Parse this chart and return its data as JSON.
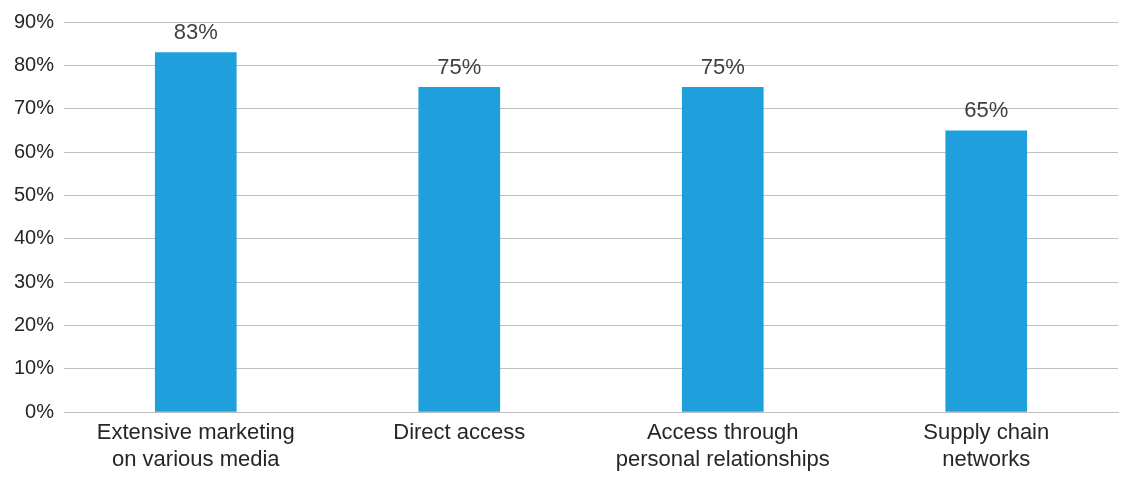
{
  "chart_data": {
    "type": "bar",
    "categories": [
      "Extensive marketing on various media",
      "Direct access",
      "Access through personal relationships",
      "Supply chain networks"
    ],
    "values": [
      83,
      75,
      75,
      65
    ],
    "color": "#1f9fdb",
    "value_labels": [
      "83%",
      "75%",
      "75%",
      "65%"
    ],
    "ylim": [
      0,
      90
    ],
    "yticks": [
      {
        "value": 0,
        "label": "0%"
      },
      {
        "value": 10,
        "label": "10%"
      },
      {
        "value": 20,
        "label": "20%"
      },
      {
        "value": 30,
        "label": "30%"
      },
      {
        "value": 40,
        "label": "40%"
      },
      {
        "value": 50,
        "label": "50%"
      },
      {
        "value": 60,
        "label": "60%"
      },
      {
        "value": 70,
        "label": "70%"
      },
      {
        "value": 80,
        "label": "80%"
      },
      {
        "value": 90,
        "label": "90%"
      }
    ],
    "grid": "y",
    "legend": false
  }
}
